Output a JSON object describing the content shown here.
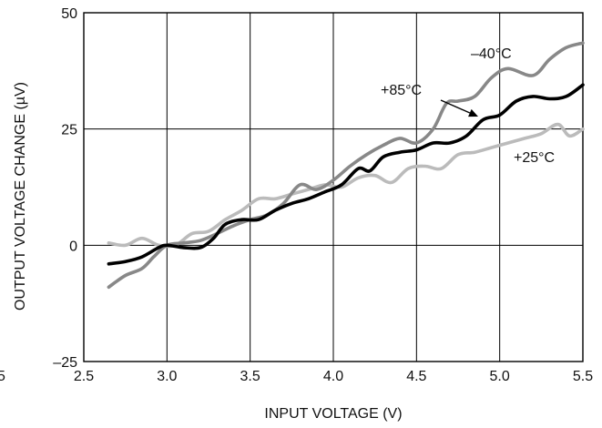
{
  "chart_data": {
    "type": "line",
    "xlabel": "INPUT VOLTAGE (V)",
    "ylabel": "OUTPUT VOLTAGE CHANGE (µV)",
    "xlim": [
      2.5,
      5.5
    ],
    "ylim": [
      -25,
      50
    ],
    "x_ticks": [
      2.5,
      3.0,
      3.5,
      4.0,
      4.5,
      5.0,
      5.5
    ],
    "x_tick_labels": [
      "2.5",
      "3.0",
      "3.5",
      "4.0",
      "4.5",
      "5.0",
      "5.5"
    ],
    "y_ticks": [
      -25,
      0,
      25,
      50
    ],
    "y_tick_labels": [
      "–25",
      "0",
      "25",
      "50"
    ],
    "left_cut_label": "5",
    "grid": true,
    "series": [
      {
        "name": "–40°C",
        "color": "#888888",
        "points": [
          [
            2.65,
            -9
          ],
          [
            2.75,
            -6.5
          ],
          [
            2.85,
            -5
          ],
          [
            2.92,
            -2.5
          ],
          [
            3.0,
            0
          ],
          [
            3.1,
            0.5
          ],
          [
            3.2,
            1
          ],
          [
            3.3,
            2.5
          ],
          [
            3.4,
            4.2
          ],
          [
            3.5,
            5.5
          ],
          [
            3.6,
            6.5
          ],
          [
            3.7,
            9
          ],
          [
            3.8,
            13
          ],
          [
            3.9,
            12
          ],
          [
            4.0,
            14
          ],
          [
            4.1,
            17
          ],
          [
            4.2,
            19.5
          ],
          [
            4.3,
            21.5
          ],
          [
            4.4,
            23
          ],
          [
            4.5,
            22
          ],
          [
            4.6,
            25
          ],
          [
            4.68,
            30.5
          ],
          [
            4.75,
            31
          ],
          [
            4.85,
            32
          ],
          [
            4.95,
            36
          ],
          [
            5.05,
            38
          ],
          [
            5.2,
            36.5
          ],
          [
            5.3,
            40
          ],
          [
            5.4,
            42.5
          ],
          [
            5.5,
            43.5
          ]
        ]
      },
      {
        "name": "+85°C",
        "color": "#000000",
        "points": [
          [
            2.65,
            -4
          ],
          [
            2.75,
            -3.5
          ],
          [
            2.85,
            -2.5
          ],
          [
            2.95,
            -0.5
          ],
          [
            3.0,
            0
          ],
          [
            3.1,
            -0.5
          ],
          [
            3.2,
            -0.5
          ],
          [
            3.28,
            1.5
          ],
          [
            3.35,
            4.5
          ],
          [
            3.45,
            5.5
          ],
          [
            3.55,
            5.5
          ],
          [
            3.65,
            7.5
          ],
          [
            3.75,
            9
          ],
          [
            3.85,
            10
          ],
          [
            3.95,
            11.5
          ],
          [
            4.05,
            13
          ],
          [
            4.15,
            16.5
          ],
          [
            4.22,
            16
          ],
          [
            4.3,
            19
          ],
          [
            4.4,
            20
          ],
          [
            4.5,
            20.5
          ],
          [
            4.6,
            22
          ],
          [
            4.7,
            22
          ],
          [
            4.8,
            23.5
          ],
          [
            4.9,
            27
          ],
          [
            5.0,
            28
          ],
          [
            5.1,
            31
          ],
          [
            5.2,
            32
          ],
          [
            5.3,
            31.5
          ],
          [
            5.4,
            32
          ],
          [
            5.5,
            34.5
          ]
        ]
      },
      {
        "name": "+25°C",
        "color": "#bbbbbb",
        "points": [
          [
            2.65,
            0.5
          ],
          [
            2.75,
            0
          ],
          [
            2.85,
            1.5
          ],
          [
            2.95,
            0
          ],
          [
            3.05,
            0
          ],
          [
            3.15,
            2.5
          ],
          [
            3.25,
            3
          ],
          [
            3.35,
            5.5
          ],
          [
            3.45,
            7.5
          ],
          [
            3.55,
            10
          ],
          [
            3.65,
            10
          ],
          [
            3.75,
            11
          ],
          [
            3.85,
            12
          ],
          [
            3.95,
            13
          ],
          [
            4.05,
            12.5
          ],
          [
            4.15,
            14.5
          ],
          [
            4.25,
            15
          ],
          [
            4.35,
            13.5
          ],
          [
            4.45,
            16.5
          ],
          [
            4.55,
            17
          ],
          [
            4.65,
            16.5
          ],
          [
            4.75,
            19.5
          ],
          [
            4.85,
            20
          ],
          [
            4.95,
            21
          ],
          [
            5.05,
            22
          ],
          [
            5.15,
            23
          ],
          [
            5.25,
            24
          ],
          [
            5.35,
            26
          ],
          [
            5.42,
            23.5
          ],
          [
            5.5,
            25
          ]
        ]
      }
    ]
  }
}
